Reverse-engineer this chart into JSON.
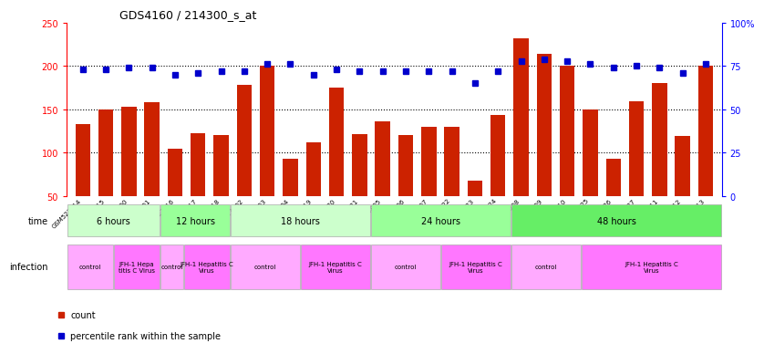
{
  "title": "GDS4160 / 214300_s_at",
  "samples": [
    "GSM523814",
    "GSM523815",
    "GSM523800",
    "GSM523801",
    "GSM523816",
    "GSM523817",
    "GSM523818",
    "GSM523802",
    "GSM523803",
    "GSM523804",
    "GSM523819",
    "GSM523820",
    "GSM523821",
    "GSM523805",
    "GSM523806",
    "GSM523807",
    "GSM523822",
    "GSM523823",
    "GSM523824",
    "GSM523808",
    "GSM523809",
    "GSM523810",
    "GSM523825",
    "GSM523826",
    "GSM523827",
    "GSM523811",
    "GSM523812",
    "GSM523813"
  ],
  "counts": [
    133,
    150,
    153,
    158,
    105,
    122,
    120,
    178,
    200,
    93,
    112,
    175,
    121,
    136,
    120,
    130,
    130,
    68,
    143,
    232,
    214,
    200,
    150,
    93,
    159,
    180,
    119,
    200
  ],
  "percentiles": [
    73,
    73,
    74,
    74,
    70,
    71,
    72,
    72,
    76,
    76,
    70,
    73,
    72,
    72,
    72,
    72,
    72,
    65,
    72,
    78,
    79,
    78,
    76,
    74,
    75,
    74,
    71,
    76
  ],
  "time_groups": [
    {
      "label": "6 hours",
      "start": 0,
      "end": 4,
      "color": "#ccffcc"
    },
    {
      "label": "12 hours",
      "start": 4,
      "end": 7,
      "color": "#99ff99"
    },
    {
      "label": "18 hours",
      "start": 7,
      "end": 13,
      "color": "#ccffcc"
    },
    {
      "label": "24 hours",
      "start": 13,
      "end": 19,
      "color": "#99ff99"
    },
    {
      "label": "48 hours",
      "start": 19,
      "end": 28,
      "color": "#66ee66"
    }
  ],
  "infection_groups": [
    {
      "label": "control",
      "start": 0,
      "end": 2,
      "color": "#ffaaff"
    },
    {
      "label": "JFH-1 Hepa\ntitis C Virus",
      "start": 2,
      "end": 4,
      "color": "#ff77ff"
    },
    {
      "label": "control",
      "start": 4,
      "end": 5,
      "color": "#ffaaff"
    },
    {
      "label": "JFH-1 Hepatitis C\nVirus",
      "start": 5,
      "end": 7,
      "color": "#ff77ff"
    },
    {
      "label": "control",
      "start": 7,
      "end": 10,
      "color": "#ffaaff"
    },
    {
      "label": "JFH-1 Hepatitis C\nVirus",
      "start": 10,
      "end": 13,
      "color": "#ff77ff"
    },
    {
      "label": "control",
      "start": 13,
      "end": 16,
      "color": "#ffaaff"
    },
    {
      "label": "JFH-1 Hepatitis C\nVirus",
      "start": 16,
      "end": 19,
      "color": "#ff77ff"
    },
    {
      "label": "control",
      "start": 19,
      "end": 22,
      "color": "#ffaaff"
    },
    {
      "label": "JFH-1 Hepatitis C\nVirus",
      "start": 22,
      "end": 28,
      "color": "#ff77ff"
    }
  ],
  "ylim_left": [
    50,
    250
  ],
  "ylim_right": [
    0,
    100
  ],
  "yticks_left": [
    50,
    100,
    150,
    200,
    250
  ],
  "yticks_right": [
    0,
    25,
    50,
    75,
    100
  ],
  "bar_color": "#cc2200",
  "dot_color": "#0000cc",
  "background_color": "#ffffff"
}
